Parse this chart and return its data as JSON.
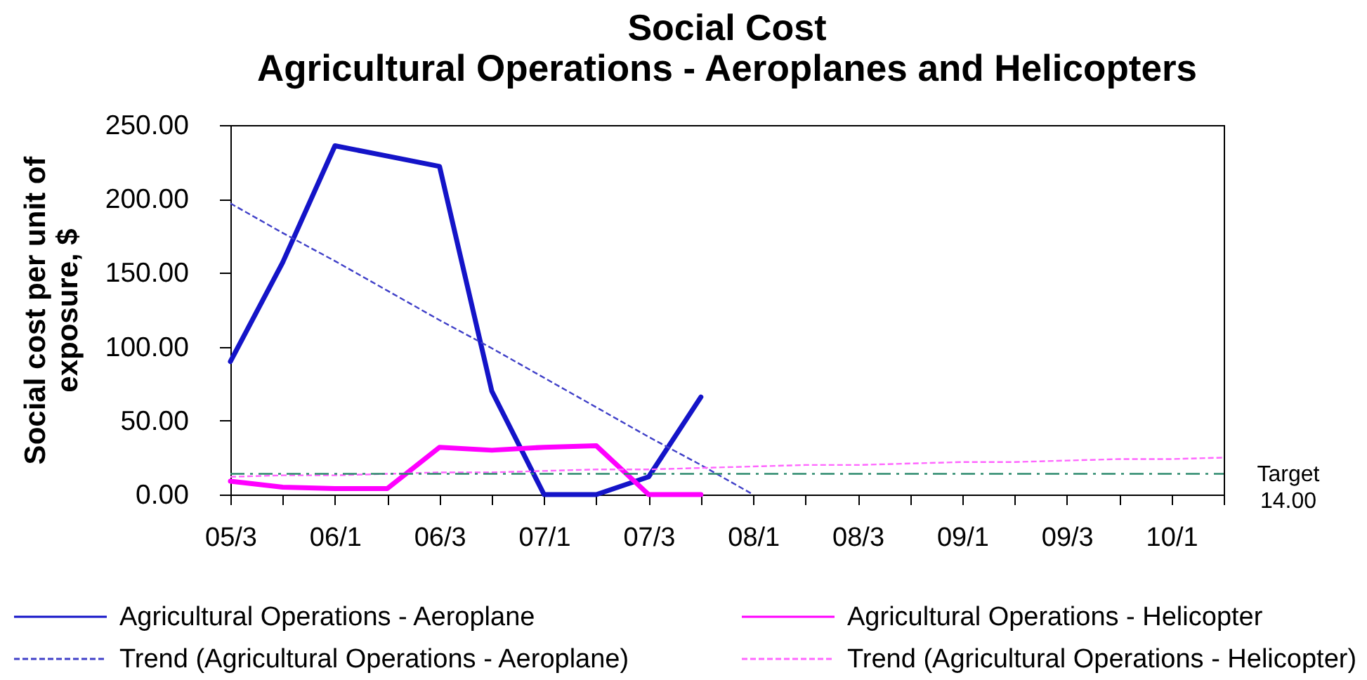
{
  "chart_data": {
    "type": "line",
    "title": "Social Cost",
    "subtitle": "Agricultural Operations - Aeroplanes and Helicopters",
    "ylabel": "Social cost per unit of\nexposure, $",
    "categories": [
      "05/3",
      null,
      "06/1",
      null,
      "06/3",
      null,
      "07/1",
      null,
      "07/3",
      null,
      "08/1",
      null,
      "08/3",
      null,
      "09/1",
      null,
      "09/3",
      null,
      "10/1",
      null
    ],
    "series": [
      {
        "name": "Agricultural Operations - Aeroplane",
        "color": "#1414c8",
        "line_style": "solid",
        "values": [
          90,
          157,
          236,
          229,
          222,
          70,
          0,
          0,
          12,
          66,
          null,
          null,
          null,
          null,
          null,
          null,
          null,
          null,
          null,
          null
        ]
      },
      {
        "name": "Agricultural Operations - Helicopter",
        "color": "#ff00ff",
        "line_style": "solid",
        "values": [
          9,
          5,
          4,
          4,
          32,
          30,
          32,
          33,
          0,
          0,
          null,
          null,
          null,
          null,
          null,
          null,
          null,
          null,
          null,
          null
        ]
      },
      {
        "name": "Trend (Agricultural Operations - Aeroplane)",
        "color": "#4040c8",
        "line_style": "dashed",
        "values": [
          197,
          177,
          158,
          138,
          118,
          99,
          79,
          59,
          39,
          20,
          0,
          null,
          null,
          null,
          null,
          null,
          null,
          null,
          null,
          null
        ]
      },
      {
        "name": "Trend (Agricultural Operations - Helicopter)",
        "color": "#ff66ff",
        "line_style": "dashed",
        "values": [
          12,
          13,
          13,
          14,
          15,
          15,
          16,
          17,
          17,
          18,
          19,
          20,
          20,
          21,
          22,
          22,
          23,
          24,
          24,
          25
        ]
      }
    ],
    "ylim": [
      0,
      250
    ],
    "yticks": [
      {
        "value": 0,
        "label": "0.00"
      },
      {
        "value": 50,
        "label": "50.00"
      },
      {
        "value": 100,
        "label": "100.00"
      },
      {
        "value": 150,
        "label": "150.00"
      },
      {
        "value": 200,
        "label": "200.00"
      },
      {
        "value": 250,
        "label": "250.00"
      }
    ],
    "ref_lines": [
      {
        "axis": "y",
        "value": 14,
        "label": "Target\n14.00",
        "color": "#2e8b6e",
        "line_style": "dashed"
      }
    ],
    "legend": "bottom",
    "grid": false
  }
}
